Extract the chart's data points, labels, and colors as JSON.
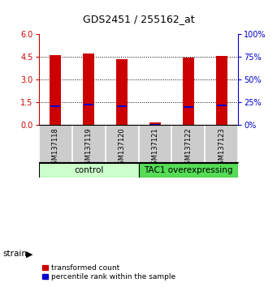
{
  "title": "GDS2451 / 255162_at",
  "samples": [
    "GSM137118",
    "GSM137119",
    "GSM137120",
    "GSM137121",
    "GSM137122",
    "GSM137123"
  ],
  "red_values": [
    4.62,
    4.72,
    4.35,
    0.2,
    4.46,
    4.6
  ],
  "blue_values": [
    1.25,
    1.37,
    1.25,
    0.05,
    1.2,
    1.32
  ],
  "ylim_left": [
    0,
    6
  ],
  "ylim_right": [
    0,
    100
  ],
  "yticks_left": [
    0,
    1.5,
    3,
    4.5,
    6
  ],
  "yticks_right": [
    0,
    25,
    50,
    75,
    100
  ],
  "groups": [
    {
      "label": "control",
      "indices": [
        0,
        1,
        2
      ],
      "color": "#ccffcc"
    },
    {
      "label": "TAC1 overexpressing",
      "indices": [
        3,
        4,
        5
      ],
      "color": "#55dd55"
    }
  ],
  "bar_width": 0.35,
  "red_color": "#cc0000",
  "blue_color": "#0000cc",
  "blue_bar_width": 0.28,
  "blue_bar_height": 0.1,
  "background_color": "#ffffff",
  "plot_bg_color": "#ffffff",
  "tick_label_area_color": "#cccccc",
  "legend_red_label": "transformed count",
  "legend_blue_label": "percentile rank within the sample",
  "strain_label": "strain",
  "left_tick_color": "#cc0000",
  "right_tick_color": "#0000cc",
  "title_fontsize": 9,
  "tick_fontsize": 7,
  "sample_fontsize": 6,
  "group_fontsize": 7.5,
  "legend_fontsize": 6.5
}
